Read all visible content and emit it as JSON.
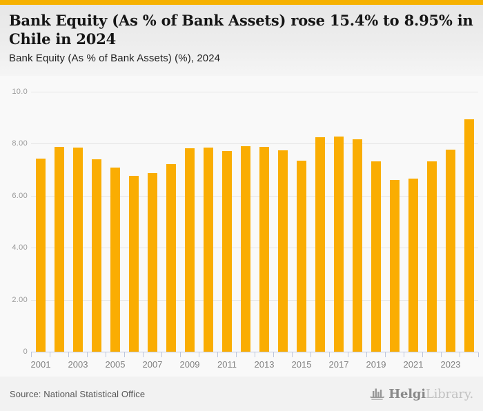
{
  "header": {
    "title": "Bank Equity (As % of Bank Assets) rose 15.4% to 8.95% in Chile in 2024",
    "subtitle": "Bank Equity (As % of Bank Assets) (%), 2024"
  },
  "colors": {
    "accent_stripe": "#F6B100",
    "bar": "#FAAD02",
    "axis": "#bcc6de",
    "gridline": "#e5e5e5",
    "chart_background": "#f9f9f9"
  },
  "chart_data": {
    "type": "bar",
    "title": "Bank Equity (As % of Bank Assets) (%), 2024",
    "xlabel": "",
    "ylabel": "",
    "ylim": [
      0,
      10
    ],
    "grid": true,
    "categories": [
      "2001",
      "2002",
      "2003",
      "2004",
      "2005",
      "2006",
      "2007",
      "2008",
      "2009",
      "2010",
      "2011",
      "2012",
      "2013",
      "2014",
      "2015",
      "2016",
      "2017",
      "2018",
      "2019",
      "2020",
      "2021",
      "2022",
      "2023",
      "2024"
    ],
    "values": [
      7.43,
      7.88,
      7.86,
      7.4,
      7.09,
      6.76,
      6.87,
      7.22,
      7.83,
      7.84,
      7.73,
      7.91,
      7.89,
      7.75,
      7.36,
      8.24,
      8.28,
      8.18,
      7.33,
      6.61,
      6.65,
      7.33,
      7.76,
      8.95
    ],
    "y_ticks": [
      {
        "v": 10,
        "label": "10.0"
      },
      {
        "v": 8,
        "label": "8.00"
      },
      {
        "v": 6,
        "label": "6.00"
      },
      {
        "v": 4,
        "label": "4.00"
      },
      {
        "v": 2,
        "label": "2.00"
      },
      {
        "v": 0,
        "label": "0"
      }
    ],
    "x_tick_labels": [
      "2001",
      "2003",
      "2005",
      "2007",
      "2009",
      "2011",
      "2013",
      "2015",
      "2017",
      "2019",
      "2021",
      "2023"
    ]
  },
  "footer": {
    "source": "Source: National Statistical Office",
    "logo_primary": "Helgi",
    "logo_secondary": "Library.",
    "logo_icon": "helgi-bars-boat-icon"
  }
}
